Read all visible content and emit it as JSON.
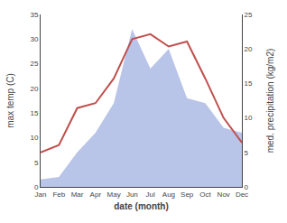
{
  "chart_data": {
    "type": "area_line",
    "categories": [
      "Jan",
      "Feb",
      "Mar",
      "Apr",
      "May",
      "Jun",
      "Jul",
      "Aug",
      "Sep",
      "Oct",
      "Nov",
      "Dec"
    ],
    "series": [
      {
        "type": "area",
        "color": "#b8c4e8",
        "values": [
          1.5,
          2.0,
          7,
          11,
          17,
          32,
          24,
          28,
          18,
          17,
          12,
          11
        ]
      },
      {
        "type": "line",
        "color": "#c0504d",
        "values": [
          7,
          8.5,
          16,
          17,
          22,
          30,
          31,
          28.5,
          29.5,
          22,
          14,
          9
        ]
      }
    ],
    "xlabel": "date (month)",
    "ylabel": "max temp (C)",
    "y2label": "med. precipitation (kg/m2)",
    "ylim": [
      0,
      35
    ],
    "yticks": [
      0,
      5,
      10,
      15,
      20,
      25,
      30,
      35
    ],
    "y2lim": [
      0,
      25
    ],
    "y2ticks": [
      0,
      5,
      10,
      15,
      20,
      25
    ],
    "grid": false
  }
}
